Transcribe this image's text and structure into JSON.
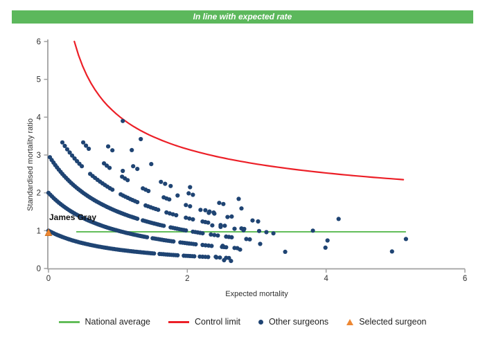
{
  "banner": {
    "text": "In line with expected rate",
    "bg_color": "#5cb85c",
    "text_color": "#ffffff"
  },
  "chart_data": {
    "type": "scatter",
    "xlabel": "Expected mortality",
    "ylabel": "Standardised mortality ratio",
    "xlim": [
      0,
      6
    ],
    "ylim": [
      0,
      6
    ],
    "x_ticks": [
      0,
      2,
      4,
      6
    ],
    "y_ticks": [
      0,
      1,
      2,
      3,
      4,
      5,
      6
    ],
    "grid": false,
    "axis_color": "#a0a0a0",
    "tick_label_color": "#303030",
    "national_average": {
      "y": 0.97,
      "x_start": 0.4,
      "x_end": 5.15,
      "color": "#62bd59"
    },
    "control_limit": {
      "formula": "y = 1 + 3.05/sqrt(x)",
      "coef": 3.05,
      "intercept": 1,
      "x_start": 0.372,
      "x_end": 5.15,
      "color": "#ec1f27"
    },
    "other_surgeons": {
      "color": "#1f4473",
      "band_formula": "y = n/(1+x)",
      "bands": [
        {
          "n": 1,
          "segments": [
            [
              0.0,
              1.52,
              62
            ],
            [
              1.6,
              1.86,
              10
            ],
            [
              1.95,
              2.1,
              6
            ],
            [
              2.18,
              2.3,
              4
            ],
            [
              2.42,
              2.47,
              2
            ],
            [
              2.56,
              2.6,
              2
            ]
          ]
        },
        {
          "n": 2,
          "segments": [
            [
              0.0,
              1.42,
              58
            ],
            [
              1.5,
              1.8,
              12
            ],
            [
              1.9,
              2.12,
              8
            ],
            [
              2.22,
              2.35,
              4
            ],
            [
              2.5,
              2.56,
              3
            ],
            [
              2.68,
              2.72,
              2
            ]
          ]
        },
        {
          "n": 3,
          "segments": [
            [
              0.02,
              1.28,
              50
            ],
            [
              1.36,
              1.66,
              12
            ],
            [
              1.76,
              1.98,
              8
            ],
            [
              2.08,
              2.22,
              5
            ],
            [
              2.34,
              2.44,
              3
            ],
            [
              2.56,
              2.64,
              3
            ],
            [
              2.85,
              2.9,
              2
            ]
          ]
        },
        {
          "n": 4,
          "segments": [
            [
              0.2,
              0.48,
              9
            ],
            [
              0.6,
              0.92,
              10
            ],
            [
              1.04,
              1.28,
              8
            ],
            [
              1.4,
              1.58,
              6
            ],
            [
              1.7,
              1.84,
              4
            ],
            [
              1.98,
              2.08,
              3
            ],
            [
              2.22,
              2.3,
              3
            ],
            [
              2.48,
              2.54,
              2
            ],
            [
              2.78,
              2.82,
              2
            ],
            [
              3.02,
              3.05,
              1
            ]
          ]
        },
        {
          "n": 5,
          "segments": [
            [
              0.5,
              0.58,
              3
            ],
            [
              0.8,
              0.88,
              3
            ],
            [
              1.06,
              1.14,
              3
            ],
            [
              1.36,
              1.44,
              3
            ],
            [
              1.66,
              1.74,
              3
            ],
            [
              1.98,
              2.04,
              2
            ],
            [
              2.32,
              2.38,
              2
            ],
            [
              2.62,
              2.66,
              1
            ],
            [
              3.0,
              3.04,
              1
            ]
          ]
        },
        {
          "n": 6,
          "segments": [
            [
              0.86,
              0.92,
              2
            ],
            [
              1.22,
              1.28,
              2
            ],
            [
              1.62,
              1.68,
              2
            ],
            [
              2.02,
              2.08,
              2
            ],
            [
              2.46,
              2.52,
              2
            ],
            [
              2.76,
              2.8,
              1
            ]
          ]
        }
      ],
      "extra_points": [
        [
          1.07,
          3.9
        ],
        [
          1.33,
          3.42
        ],
        [
          1.2,
          3.13
        ],
        [
          1.48,
          2.76
        ],
        [
          1.07,
          2.58
        ],
        [
          1.76,
          2.18
        ],
        [
          1.86,
          1.93
        ],
        [
          2.04,
          2.15
        ],
        [
          2.74,
          1.84
        ],
        [
          2.19,
          1.55
        ],
        [
          2.26,
          1.54
        ],
        [
          2.31,
          1.47
        ],
        [
          2.39,
          1.45
        ],
        [
          2.58,
          1.36
        ],
        [
          2.94,
          1.27
        ],
        [
          2.36,
          1.14
        ],
        [
          2.48,
          1.1
        ],
        [
          2.68,
          1.05
        ],
        [
          2.81,
          1.01
        ],
        [
          3.14,
          0.96
        ],
        [
          3.24,
          0.93
        ],
        [
          3.81,
          1.0
        ],
        [
          4.18,
          1.31
        ],
        [
          4.02,
          0.74
        ],
        [
          3.99,
          0.55
        ],
        [
          3.41,
          0.44
        ],
        [
          4.95,
          0.45
        ],
        [
          5.15,
          0.78
        ],
        [
          3.05,
          0.65
        ],
        [
          2.51,
          0.6
        ],
        [
          2.76,
          0.5
        ],
        [
          2.41,
          0.31
        ],
        [
          2.53,
          0.22
        ],
        [
          2.63,
          0.2
        ]
      ]
    },
    "selected_surgeon": {
      "name": "James Gray",
      "x": 0.0,
      "y": 0.95,
      "color": "#ed8733"
    },
    "legend": [
      {
        "label": "National average",
        "type": "line",
        "color": "#62bd59"
      },
      {
        "label": "Control limit",
        "type": "line",
        "color": "#ec1f27"
      },
      {
        "label": "Other surgeons",
        "type": "dot",
        "color": "#1f4473"
      },
      {
        "label": "Selected surgeon",
        "type": "triangle",
        "color": "#ed8733"
      }
    ]
  }
}
